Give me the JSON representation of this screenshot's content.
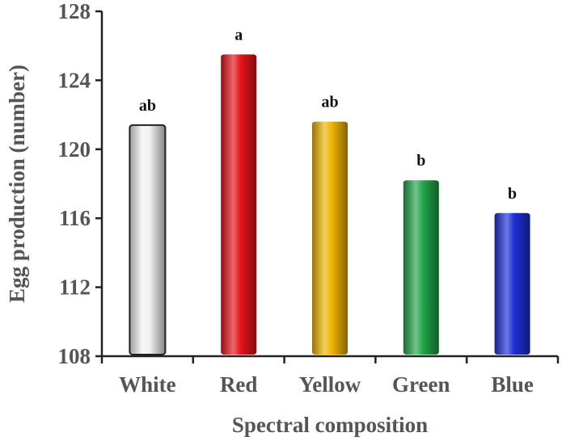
{
  "chart_data": {
    "type": "bar",
    "categories": [
      "White",
      "Red",
      "Yellow",
      "Green",
      "Blue"
    ],
    "values": [
      121.4,
      125.5,
      121.6,
      118.2,
      116.3
    ],
    "significance_labels": [
      "ab",
      "a",
      "ab",
      "b",
      "b"
    ],
    "colors": [
      "#f2f2f2",
      "#e8141a",
      "#f0b400",
      "#22a64a",
      "#1f2fd6"
    ],
    "title": "",
    "xlabel": "Spectral composition",
    "ylabel": "Egg production (number)",
    "ylim": [
      108,
      128
    ],
    "yticks": [
      108,
      112,
      116,
      120,
      124,
      128
    ],
    "grid": false,
    "legend": "none"
  }
}
